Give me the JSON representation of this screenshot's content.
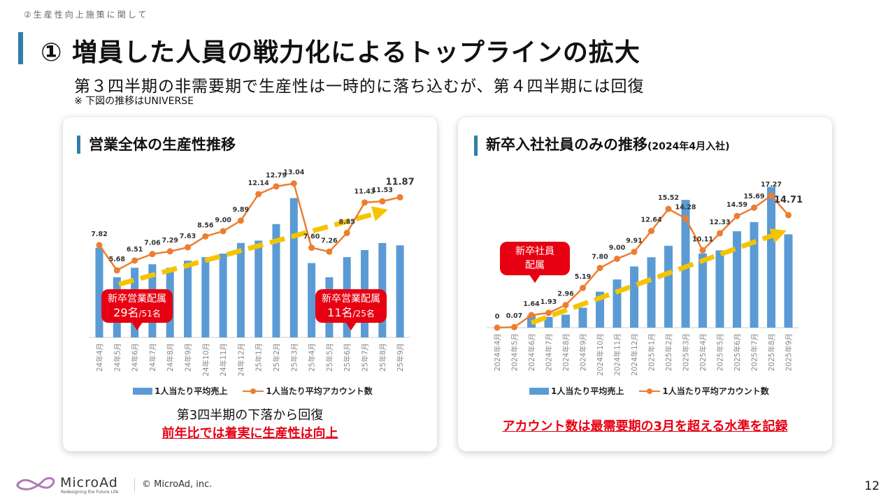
{
  "header": {
    "section": "②生産性向上施策に関して",
    "title": "① 増員した人員の戦力化によるトップラインの拡大",
    "subtitle": "第３四半期の非需要期で生産性は一時的に落ち込むが、第４四半期には回復",
    "note": "※ 下図の推移はUNIVERSE"
  },
  "colors": {
    "bar": "#5b9bd5",
    "line": "#ed7d31",
    "trend": "#f5c400",
    "accent": "#e60012",
    "heading_bar": "#2f7fa6"
  },
  "left": {
    "heading": "営業全体の生産性推移",
    "callout1": {
      "title": "新卒営業配属",
      "main": "29名",
      "sub": "/51名"
    },
    "callout2": {
      "title": "新卒営業配属",
      "main": "11名",
      "sub": "/25名"
    },
    "caption": "第3四半期の下落から回復",
    "highlight": "前年比では着実に生産性は向上"
  },
  "right": {
    "heading": "新卒入社社員のみの推移",
    "heading_note": "(2024年4月入社)",
    "callout": {
      "line1": "新卒社員",
      "line2": "配属"
    },
    "highlight": "アカウント数は最需要期の3月を超える水準を記録"
  },
  "chart_data": [
    {
      "type": "bar+line",
      "title": "営業全体の生産性推移",
      "categories": [
        "24年4月",
        "24年5月",
        "24年6月",
        "24年7月",
        "24年8月",
        "24年9月",
        "24年10月",
        "24年11月",
        "24年12月",
        "25年1月",
        "25年2月",
        "25年3月",
        "25年4月",
        "25年5月",
        "25年6月",
        "25年7月",
        "25年8月",
        "25年9月"
      ],
      "series": [
        {
          "name": "1人当たり平均売上",
          "type": "bar",
          "values_relative": [
            7.6,
            5.1,
            5.9,
            6.2,
            5.9,
            6.5,
            6.8,
            7.1,
            8.0,
            8.2,
            9.6,
            11.8,
            6.3,
            5.1,
            6.8,
            7.4,
            8.0,
            7.8
          ]
        },
        {
          "name": "1人当たり平均アカウント数",
          "type": "line",
          "values": [
            7.82,
            5.68,
            6.51,
            7.06,
            7.29,
            7.63,
            8.56,
            9.0,
            9.89,
            12.14,
            12.79,
            13.04,
            7.6,
            7.26,
            8.85,
            11.43,
            11.53,
            11.87
          ],
          "labels": [
            "7.82",
            "5.68",
            "6.51",
            "7.06",
            "7.29",
            "7.63",
            "8.56",
            "9.00",
            "9.89",
            "12.14",
            "12.79",
            "13.04",
            "7.60",
            "7.26",
            "8.85",
            "11.43",
            "11.53",
            "11.87"
          ]
        }
      ],
      "legend": "bottom",
      "grid": false
    },
    {
      "type": "bar+line",
      "title": "新卒入社社員のみの推移",
      "categories": [
        "2024年4月",
        "2024年5月",
        "2024年6月",
        "2024年7月",
        "2024年8月",
        "2024年9月",
        "2024年10月",
        "2024年11月",
        "2024年12月",
        "2025年1月",
        "2025年2月",
        "2025年3月",
        "2025年4月",
        "2025年5月",
        "2025年6月",
        "2025年7月",
        "2025年8月",
        "2025年9月"
      ],
      "series": [
        {
          "name": "1人当たり平均売上",
          "type": "bar",
          "values_relative": [
            0,
            0,
            1.6,
            1.4,
            1.7,
            2.6,
            4.7,
            6.3,
            8.0,
            9.2,
            10.7,
            16.7,
            9.7,
            10.1,
            12.6,
            13.8,
            18.4,
            12.2
          ]
        },
        {
          "name": "1人当たり平均アカウント数",
          "type": "line",
          "values": [
            0,
            0.07,
            1.64,
            1.93,
            2.96,
            5.19,
            7.8,
            9.0,
            9.91,
            12.64,
            15.52,
            14.28,
            10.11,
            12.33,
            14.59,
            15.69,
            17.27,
            14.71
          ],
          "labels": [
            "0",
            "0.07",
            "1.64",
            "1.93",
            "2.96",
            "5.19",
            "7.80",
            "9.00",
            "9.91",
            "12.64",
            "15.52",
            "14.28",
            "10.11",
            "12.33",
            "14.59",
            "15.69",
            "17.27",
            "14.71"
          ]
        }
      ],
      "legend": "bottom",
      "grid": false
    }
  ],
  "footer": {
    "brand": "MicroAd",
    "tagline": "Redesigning the Future Life",
    "copyright": "© MicroAd, inc.",
    "page": "12"
  }
}
